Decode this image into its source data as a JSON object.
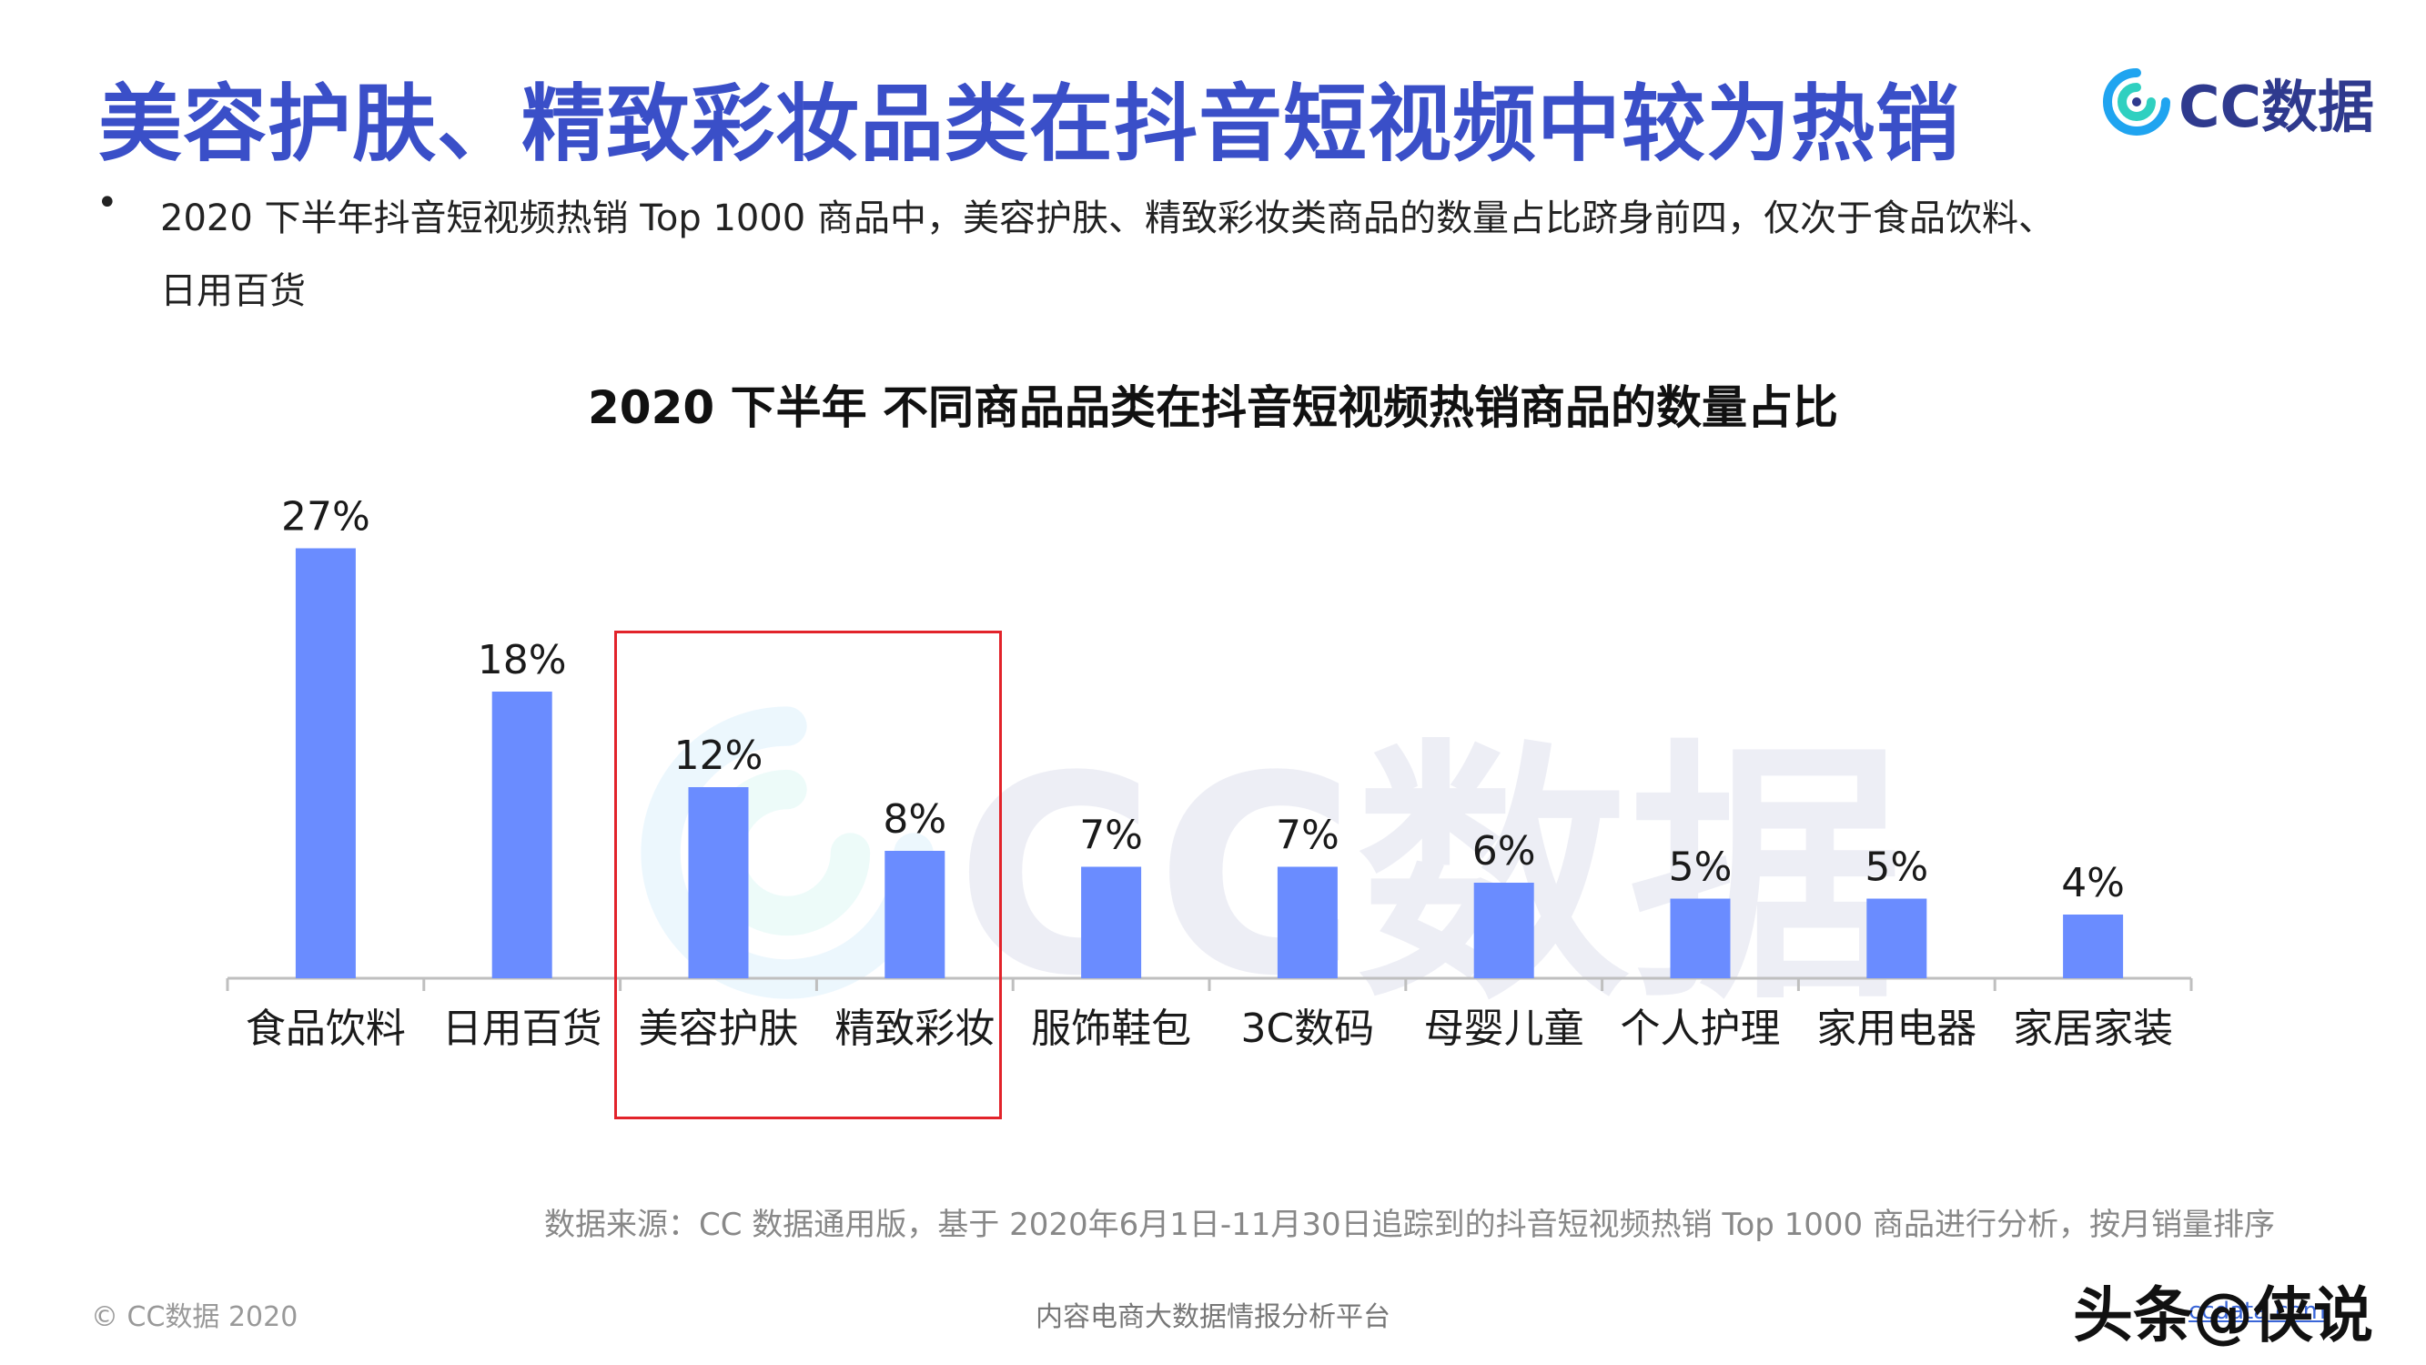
{
  "header": {
    "title": "美容护肤、精致彩妆品类在抖音短视频中较为热销",
    "logo_text": "CC数据"
  },
  "summary": {
    "bullet_symbol": "•",
    "line1": "2020 下半年抖音短视频热销 Top 1000 商品中，美容护肤、精致彩妆类商品的数量占比跻身前四，仅次于食品饮料、",
    "line2": "日用百货"
  },
  "chart_data": {
    "type": "bar",
    "title": "2020 下半年 不同商品品类在抖音短视频热销商品的数量占比",
    "categories": [
      "食品饮料",
      "日用百货",
      "美容护肤",
      "精致彩妆",
      "服饰鞋包",
      "3C数码",
      "母婴儿童",
      "个人护理",
      "家用电器",
      "家居家装"
    ],
    "values": [
      27,
      18,
      12,
      8,
      7,
      7,
      6,
      5,
      5,
      4
    ],
    "value_labels": [
      "27%",
      "18%",
      "12%",
      "8%",
      "7%",
      "7%",
      "6%",
      "5%",
      "5%",
      "4%"
    ],
    "highlighted_categories": [
      "美容护肤",
      "精致彩妆"
    ],
    "xlabel": "",
    "ylabel": "",
    "grid": false,
    "legend": "none"
  },
  "colors": {
    "title": "#3a4fc8",
    "bar": "#6a8cff",
    "highlight_box": "#e2232a"
  },
  "watermark_text": "CC数据",
  "footer": {
    "source": "数据来源：CC 数据通用版，基于 2020年6月1日-11月30日追踪到的抖音短视频热销 Top 1000 商品进行分析，按月销量排序",
    "copyright": "© CC数据 2020",
    "platform": "内容电商大数据情报分析平台",
    "link": "ccdata.com",
    "toutiao_watermark": "头条@侠说"
  }
}
